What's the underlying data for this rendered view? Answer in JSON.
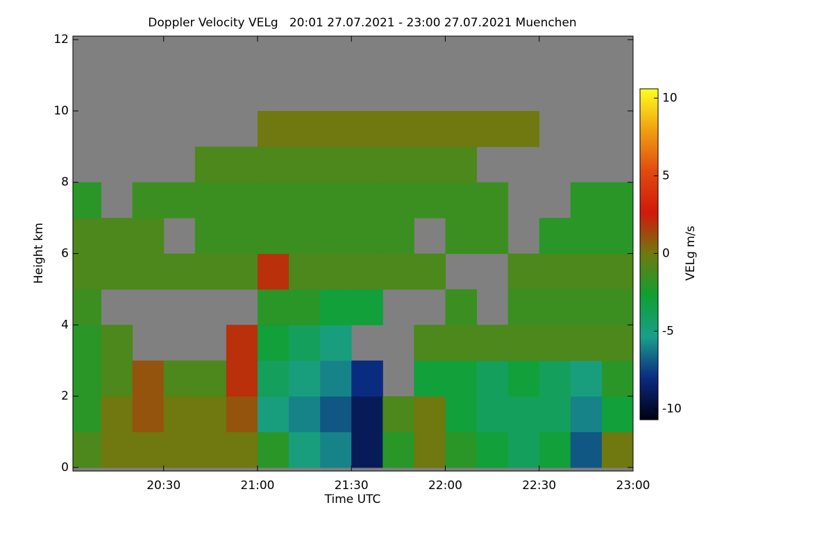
{
  "chart_data": {
    "type": "heatmap",
    "title": "Doppler Velocity VELg   20:01 27.07.2021 - 23:00 27.07.2021 Muenchen",
    "x_label": "Time UTC",
    "y_label": "Height km",
    "colorbar_label": "VELg m/s",
    "xlim": [
      20.0167,
      23.0
    ],
    "xticks": [
      {
        "value": 20.5,
        "label": "20:30"
      },
      {
        "value": 21.0,
        "label": "21:00"
      },
      {
        "value": 21.5,
        "label": "21:30"
      },
      {
        "value": 22.0,
        "label": "22:00"
      },
      {
        "value": 22.5,
        "label": "22:30"
      },
      {
        "value": 23.0,
        "label": "23:00"
      }
    ],
    "ylim": [
      -0.1,
      12.1
    ],
    "yticks": [
      0,
      2,
      4,
      6,
      8,
      10,
      12
    ],
    "zlim": [
      -10.7,
      10.6
    ],
    "zticks": [
      -10,
      -5,
      0,
      5,
      10
    ],
    "colorscale": [
      "#000010",
      "#0a2a80",
      "#1a9e8a",
      "#10a030",
      "#6e7a10",
      "#d01a0a",
      "#e04a10",
      "#f0a010",
      "#ffff20"
    ],
    "no_data_color": "#808080",
    "x": [
      20.0833,
      20.25,
      20.4167,
      20.5833,
      20.75,
      20.9167,
      21.0833,
      21.25,
      21.4167,
      21.5833,
      21.75,
      21.9167,
      22.0833,
      22.25,
      22.4167,
      22.5833,
      22.75,
      22.9167
    ],
    "y": [
      0.5,
      1.5,
      2.5,
      3.5,
      4.5,
      5.5,
      6.5,
      7.5,
      8.5,
      9.5,
      10.5,
      11.5
    ],
    "z": [
      [
        -1,
        0,
        0,
        0,
        0,
        0,
        -2,
        -5,
        -6,
        -9,
        -2,
        0,
        -2,
        -3,
        -4,
        -3,
        -7,
        0
      ],
      [
        -2,
        0,
        1,
        0,
        0,
        1,
        -5,
        -6,
        -7,
        -9,
        -1,
        0,
        -3,
        -4,
        -4,
        -4,
        -6,
        -3
      ],
      [
        -2,
        -1,
        1,
        -1,
        -1,
        2,
        -4,
        -5,
        -6,
        -8,
        null,
        -3,
        -3,
        -4,
        -3,
        -4,
        -5,
        -2
      ],
      [
        -2,
        -1,
        null,
        null,
        null,
        2,
        -3,
        -4,
        -5,
        null,
        null,
        -1,
        -1,
        -1,
        -1,
        -1,
        -1,
        -1
      ],
      [
        -1.5,
        null,
        null,
        null,
        null,
        null,
        -2,
        -2,
        -3,
        -3,
        null,
        null,
        -1.5,
        null,
        -1.5,
        -1.5,
        -1.5,
        -1.5
      ],
      [
        -1,
        -1,
        -1,
        -1,
        -1,
        -1,
        2,
        -1,
        -1,
        -1,
        -1,
        -1,
        null,
        null,
        -1,
        -1,
        -1,
        -1
      ],
      [
        -1,
        -1,
        -1,
        null,
        -1.5,
        -1.5,
        -1.5,
        -1.5,
        -1.5,
        -1.5,
        -1.5,
        null,
        -1.5,
        -1.5,
        null,
        -2,
        -2,
        -2
      ],
      [
        -2,
        null,
        -1.5,
        -1.5,
        -1.5,
        -1.5,
        -1.5,
        -1.5,
        -1.5,
        -1.5,
        -1.5,
        -1.5,
        -1.5,
        -1.5,
        null,
        null,
        -2,
        -2
      ],
      [
        null,
        null,
        null,
        null,
        -1,
        -1,
        -1,
        -1,
        -1,
        -1,
        -1,
        -1,
        -1,
        null,
        null,
        null,
        null,
        null
      ],
      [
        null,
        null,
        null,
        null,
        null,
        null,
        0,
        0,
        0,
        0,
        0,
        0,
        0,
        0,
        0,
        null,
        null,
        null
      ],
      [
        null,
        null,
        null,
        null,
        null,
        null,
        null,
        null,
        null,
        null,
        null,
        null,
        null,
        null,
        null,
        null,
        null,
        null
      ],
      [
        null,
        null,
        null,
        null,
        null,
        null,
        null,
        null,
        null,
        null,
        null,
        null,
        null,
        null,
        null,
        null,
        null,
        null
      ]
    ]
  }
}
